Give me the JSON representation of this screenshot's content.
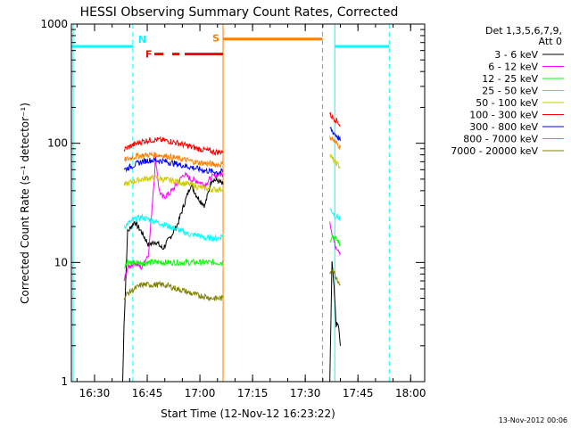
{
  "chart_data": {
    "type": "line",
    "title": "HESSI Observing Summary Count Rates, Corrected",
    "xlabel": "Start Time (12-Nov-12 16:23:22)",
    "ylabel": "Corrected Count Rate (s⁻¹ detector⁻¹)",
    "yscale": "log",
    "ylim": [
      1,
      1000
    ],
    "xlim_minutes": [
      0,
      100.6
    ],
    "x_tick_labels": [
      "16:30",
      "16:45",
      "17:00",
      "17:15",
      "17:30",
      "17:45",
      "18:00"
    ],
    "x_ticks_minutes": [
      6.6,
      21.6,
      36.6,
      51.6,
      66.6,
      81.6,
      96.6
    ],
    "y_tick_labels": [
      "1",
      "10",
      "100",
      "1000"
    ],
    "y_ticks": [
      1,
      10,
      100,
      1000
    ],
    "legend_header": [
      "Det 1,3,5,6,7,9,",
      "Att 0"
    ],
    "legend_position": "top-right",
    "series": [
      {
        "name": "3 - 6 keV",
        "color": "#000000",
        "segments": [
          [
            [
              14.6,
              1.0
            ],
            [
              15.0,
              3
            ],
            [
              16.0,
              18
            ],
            [
              18.0,
              22
            ],
            [
              20.0,
              18
            ],
            [
              22.0,
              14
            ],
            [
              24.0,
              15
            ],
            [
              26.0,
              13
            ],
            [
              28.0,
              16
            ],
            [
              30.0,
              20
            ],
            [
              32.0,
              30
            ],
            [
              34.0,
              45
            ],
            [
              36.0,
              35
            ],
            [
              38.0,
              30
            ],
            [
              40.0,
              50
            ],
            [
              42.0,
              48
            ],
            [
              43.2,
              45
            ]
          ],
          [
            [
              73.6,
              1.0
            ],
            [
              74.2,
              10
            ],
            [
              74.8,
              6
            ],
            [
              75.4,
              3
            ],
            [
              76.0,
              3
            ],
            [
              76.6,
              2
            ]
          ]
        ]
      },
      {
        "name": "6 - 12 keV",
        "color": "#ff00ff",
        "segments": [
          [
            [
              15.0,
              7
            ],
            [
              16.0,
              9
            ],
            [
              18.0,
              10
            ],
            [
              20.0,
              9
            ],
            [
              22.0,
              12
            ],
            [
              24.0,
              75
            ],
            [
              25.0,
              40
            ],
            [
              26.0,
              35
            ],
            [
              28.0,
              38
            ],
            [
              30.0,
              45
            ],
            [
              32.0,
              55
            ],
            [
              34.0,
              50
            ],
            [
              36.0,
              48
            ],
            [
              38.0,
              45
            ],
            [
              40.0,
              52
            ],
            [
              42.0,
              55
            ],
            [
              43.2,
              55
            ]
          ],
          [
            [
              73.6,
              22
            ],
            [
              74.2,
              18
            ],
            [
              75.0,
              14
            ],
            [
              76.0,
              13
            ],
            [
              76.6,
              12
            ]
          ]
        ]
      },
      {
        "name": "12 - 25 keV",
        "color": "#00ff00",
        "segments": [
          [
            [
              15.0,
              9
            ],
            [
              16.0,
              10
            ],
            [
              18.0,
              10
            ],
            [
              20.0,
              10
            ],
            [
              22.0,
              10
            ],
            [
              24.0,
              10
            ],
            [
              26.0,
              10
            ],
            [
              28.0,
              10
            ],
            [
              30.0,
              10
            ],
            [
              32.0,
              10
            ],
            [
              34.0,
              10
            ],
            [
              36.0,
              10
            ],
            [
              38.0,
              10
            ],
            [
              40.0,
              10
            ],
            [
              42.0,
              10
            ],
            [
              43.2,
              10
            ]
          ],
          [
            [
              73.6,
              15
            ],
            [
              74.2,
              17
            ],
            [
              75.0,
              16
            ],
            [
              76.0,
              15
            ],
            [
              76.6,
              14
            ]
          ]
        ]
      },
      {
        "name": "25 - 50 keV",
        "color": "#00ffff",
        "segments": [
          [
            [
              15.0,
              20
            ],
            [
              16.0,
              21
            ],
            [
              18.0,
              23
            ],
            [
              20.0,
              24
            ],
            [
              22.0,
              23
            ],
            [
              24.0,
              22
            ],
            [
              26.0,
              21
            ],
            [
              28.0,
              20
            ],
            [
              30.0,
              19
            ],
            [
              32.0,
              18
            ],
            [
              34.0,
              17
            ],
            [
              36.0,
              17
            ],
            [
              38.0,
              16
            ],
            [
              40.0,
              16
            ],
            [
              42.0,
              16
            ],
            [
              43.2,
              17
            ]
          ],
          [
            [
              73.6,
              28
            ],
            [
              74.2,
              27
            ],
            [
              75.0,
              25
            ],
            [
              76.0,
              24
            ],
            [
              76.6,
              23
            ]
          ]
        ]
      },
      {
        "name": "50 - 100 keV",
        "color": "#cccc00",
        "segments": [
          [
            [
              15.0,
              44
            ],
            [
              16.0,
              46
            ],
            [
              18.0,
              48
            ],
            [
              20.0,
              50
            ],
            [
              22.0,
              51
            ],
            [
              24.0,
              51
            ],
            [
              26.0,
              50
            ],
            [
              28.0,
              49
            ],
            [
              30.0,
              48
            ],
            [
              32.0,
              46
            ],
            [
              34.0,
              45
            ],
            [
              36.0,
              43
            ],
            [
              38.0,
              42
            ],
            [
              40.0,
              41
            ],
            [
              42.0,
              41
            ],
            [
              43.2,
              42
            ]
          ],
          [
            [
              73.6,
              80
            ],
            [
              74.2,
              75
            ],
            [
              75.0,
              70
            ],
            [
              76.0,
              66
            ],
            [
              76.6,
              62
            ]
          ]
        ]
      },
      {
        "name": "100 - 300 keV",
        "color": "#ff0000",
        "segments": [
          [
            [
              15.0,
              88
            ],
            [
              16.0,
              92
            ],
            [
              18.0,
              98
            ],
            [
              20.0,
              103
            ],
            [
              22.0,
              106
            ],
            [
              24.0,
              107
            ],
            [
              26.0,
              106
            ],
            [
              28.0,
              104
            ],
            [
              30.0,
              101
            ],
            [
              32.0,
              97
            ],
            [
              34.0,
              94
            ],
            [
              36.0,
              90
            ],
            [
              38.0,
              88
            ],
            [
              40.0,
              85
            ],
            [
              42.0,
              84
            ],
            [
              43.2,
              86
            ]
          ],
          [
            [
              73.6,
              175
            ],
            [
              74.2,
              168
            ],
            [
              75.0,
              160
            ],
            [
              76.0,
              150
            ],
            [
              76.6,
              140
            ]
          ]
        ]
      },
      {
        "name": "300 - 800 keV",
        "color": "#0000ff",
        "segments": [
          [
            [
              15.0,
              60
            ],
            [
              16.0,
              62
            ],
            [
              18.0,
              66
            ],
            [
              20.0,
              70
            ],
            [
              22.0,
              72
            ],
            [
              24.0,
              72
            ],
            [
              26.0,
              71
            ],
            [
              28.0,
              69
            ],
            [
              30.0,
              67
            ],
            [
              32.0,
              65
            ],
            [
              34.0,
              63
            ],
            [
              36.0,
              61
            ],
            [
              38.0,
              59
            ],
            [
              40.0,
              58
            ],
            [
              42.0,
              57
            ],
            [
              43.2,
              58
            ]
          ],
          [
            [
              73.6,
              135
            ],
            [
              74.2,
              128
            ],
            [
              75.0,
              120
            ],
            [
              76.0,
              112
            ],
            [
              76.6,
              105
            ]
          ]
        ]
      },
      {
        "name": "800 - 7000 keV",
        "color": "#ff8000",
        "segments": [
          [
            [
              15.0,
              72
            ],
            [
              16.0,
              74
            ],
            [
              18.0,
              77
            ],
            [
              20.0,
              79
            ],
            [
              22.0,
              80
            ],
            [
              24.0,
              80
            ],
            [
              26.0,
              79
            ],
            [
              28.0,
              77
            ],
            [
              30.0,
              75
            ],
            [
              32.0,
              73
            ],
            [
              34.0,
              71
            ],
            [
              36.0,
              69
            ],
            [
              38.0,
              68
            ],
            [
              40.0,
              67
            ],
            [
              42.0,
              66
            ],
            [
              43.2,
              67
            ]
          ],
          [
            [
              73.6,
              115
            ],
            [
              74.2,
              110
            ],
            [
              75.0,
              103
            ],
            [
              76.0,
              97
            ],
            [
              76.6,
              92
            ]
          ]
        ]
      },
      {
        "name": "7000 - 20000 keV",
        "color": "#808000",
        "segments": [
          [
            [
              15.0,
              5
            ],
            [
              16.0,
              5.5
            ],
            [
              18.0,
              6
            ],
            [
              20.0,
              6.5
            ],
            [
              22.0,
              6.5
            ],
            [
              24.0,
              6.5
            ],
            [
              26.0,
              6.5
            ],
            [
              28.0,
              6.3
            ],
            [
              30.0,
              6
            ],
            [
              32.0,
              5.8
            ],
            [
              34.0,
              5.5
            ],
            [
              36.0,
              5.3
            ],
            [
              38.0,
              5.2
            ],
            [
              40.0,
              5
            ],
            [
              42.0,
              5
            ],
            [
              43.2,
              5
            ]
          ],
          [
            [
              73.6,
              8
            ],
            [
              74.2,
              9
            ],
            [
              75.0,
              8
            ],
            [
              76.0,
              7
            ],
            [
              76.6,
              6.5
            ]
          ]
        ]
      }
    ],
    "flags": {
      "cyan_bars": [
        {
          "x1": 0,
          "x2": 17.5,
          "y": 650
        },
        {
          "x1": 75.0,
          "x2": 90.5,
          "y": 650
        }
      ],
      "orange_bar": {
        "x1": 43.2,
        "x2": 71.5,
        "y": 750,
        "label": "S"
      },
      "red_bar": {
        "x1": 21.6,
        "x2": 43.2,
        "y": 560,
        "label": "F"
      },
      "cyan_label": "N",
      "solid_lines": [
        {
          "x": 0.5,
          "color": "#00ffff"
        },
        {
          "x": 43.2,
          "color": "#ff8000"
        },
        {
          "x": 75.0,
          "color": "#00ffff"
        }
      ],
      "dashed_lines": [
        {
          "x": 17.5,
          "color": "#00ffff"
        },
        {
          "x": 71.5,
          "color": "#ff8000"
        },
        {
          "x": 90.5,
          "color": "#00ffff"
        }
      ]
    }
  },
  "footer_date": "13-Nov-2012 00:06"
}
